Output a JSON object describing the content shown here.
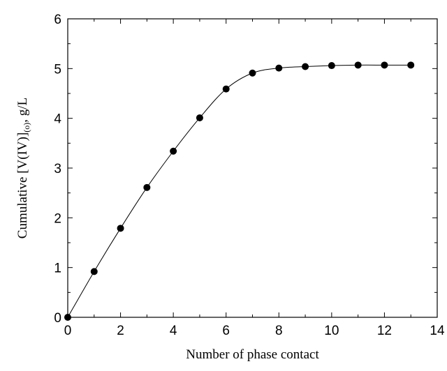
{
  "chart_data": {
    "type": "line",
    "title": "",
    "xlabel": "Number of phase contact",
    "ylabel": "Cumulative [V(IV)]",
    "ylabel_subscript": "(o)",
    "ylabel_suffix": ", g/L",
    "xlim": [
      0,
      14
    ],
    "ylim": [
      0,
      6
    ],
    "xticks": [
      0,
      2,
      4,
      6,
      8,
      10,
      12,
      14
    ],
    "yticks": [
      0,
      1,
      2,
      3,
      4,
      5,
      6
    ],
    "grid": false,
    "series": [
      {
        "x": [
          0,
          1,
          2,
          3,
          4,
          5,
          6,
          7,
          8,
          9,
          10,
          11,
          12,
          13
        ],
        "y": [
          0,
          0.92,
          1.79,
          2.61,
          3.34,
          4.01,
          4.59,
          4.91,
          5.01,
          5.04,
          5.06,
          5.07,
          5.07,
          5.07
        ],
        "marker": "filled-circle",
        "color": "#000000"
      }
    ]
  }
}
